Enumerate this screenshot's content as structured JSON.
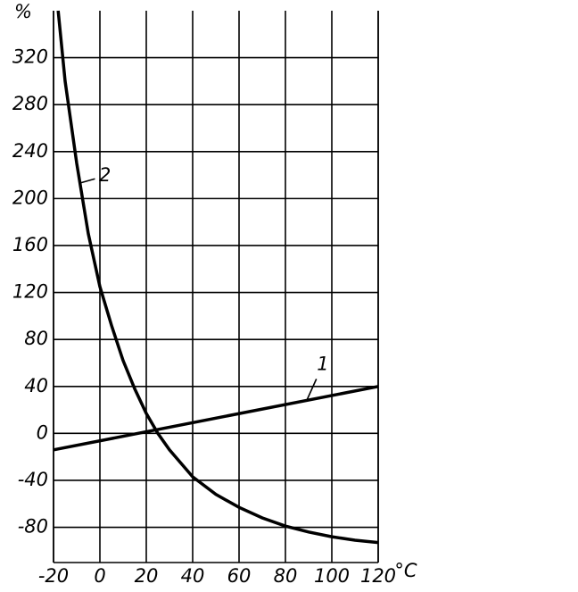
{
  "chart_data": {
    "type": "line",
    "x_label": "°C",
    "y_label": "%",
    "xlim": [
      -20,
      120
    ],
    "ylim": [
      -110,
      360
    ],
    "xticks": [
      -20,
      0,
      20,
      40,
      60,
      80,
      100,
      120
    ],
    "yticks": [
      -80,
      -40,
      0,
      40,
      80,
      120,
      160,
      200,
      240,
      280,
      320
    ],
    "grid": true,
    "series": [
      {
        "name": "1",
        "color": "#000000",
        "x": [
          -20,
          120
        ],
        "values": [
          -14,
          40
        ]
      },
      {
        "name": "2",
        "color": "#000000",
        "x": [
          -18,
          -15,
          -10,
          -5,
          0,
          5,
          10,
          15,
          20,
          25,
          30,
          40,
          50,
          60,
          70,
          80,
          90,
          100,
          110,
          120
        ],
        "values": [
          360,
          300,
          230,
          170,
          125,
          92,
          62,
          38,
          17,
          0,
          -14,
          -37,
          -52,
          -63,
          -72,
          -79,
          -84,
          -88,
          -91,
          -93
        ]
      }
    ]
  }
}
